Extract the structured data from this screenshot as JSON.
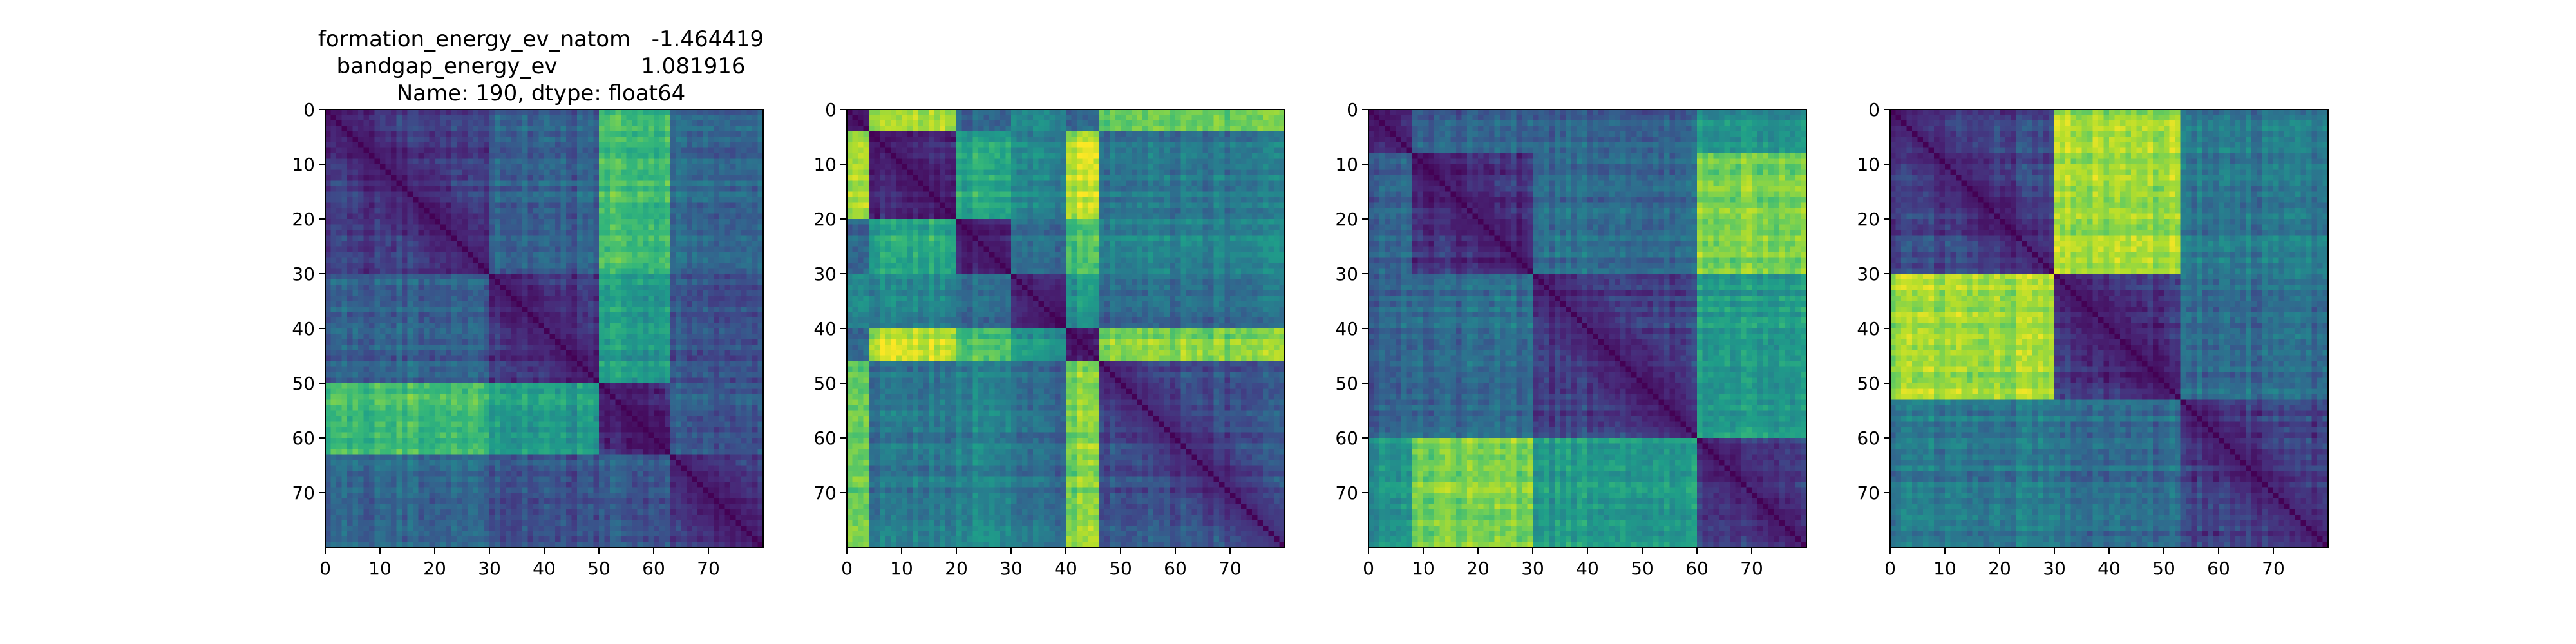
{
  "figure": {
    "background": "#ffffff",
    "colormap": "viridis",
    "colormap_stops": [
      "#440154",
      "#482878",
      "#3e4989",
      "#31688e",
      "#26828e",
      "#1f9e89",
      "#35b779",
      "#6ece58",
      "#b5de2b",
      "#fde725"
    ],
    "title_lines": [
      "formation_energy_ev_natom   -1.464419",
      "bandgap_energy_ev            1.081916",
      "Name: 190, dtype: float64"
    ]
  },
  "chart_data": [
    {
      "type": "heatmap",
      "title": "",
      "size": 80,
      "xlim": [
        0,
        80
      ],
      "ylim": [
        80,
        0
      ],
      "x_ticks": [
        0,
        10,
        20,
        30,
        40,
        50,
        60,
        70
      ],
      "y_ticks": [
        0,
        10,
        20,
        30,
        40,
        50,
        60,
        70
      ],
      "structure": "block pairwise-distance matrix (diagonal = 0); values approximate, normalized 0-1",
      "blocks": [
        [
          0,
          30
        ],
        [
          30,
          50
        ],
        [
          50,
          63
        ],
        [
          63,
          80
        ]
      ],
      "block_values": [
        [
          0.2,
          0.3,
          0.7,
          0.35
        ],
        [
          0.3,
          0.15,
          0.55,
          0.25
        ],
        [
          0.7,
          0.55,
          0.15,
          0.3
        ],
        [
          0.35,
          0.25,
          0.3,
          0.2
        ]
      ]
    },
    {
      "type": "heatmap",
      "title": "",
      "size": 80,
      "xlim": [
        0,
        80
      ],
      "ylim": [
        80,
        0
      ],
      "x_ticks": [
        0,
        10,
        20,
        30,
        40,
        50,
        60,
        70
      ],
      "y_ticks": [
        0,
        10,
        20,
        30,
        40,
        50,
        60,
        70
      ],
      "structure": "block pairwise-distance matrix (diagonal = 0); values approximate, normalized 0-1",
      "blocks": [
        [
          0,
          4
        ],
        [
          4,
          20
        ],
        [
          20,
          30
        ],
        [
          30,
          40
        ],
        [
          40,
          46
        ],
        [
          46,
          80
        ]
      ],
      "block_values": [
        [
          0.1,
          0.85,
          0.3,
          0.45,
          0.3,
          0.75
        ],
        [
          0.85,
          0.15,
          0.6,
          0.45,
          0.9,
          0.4
        ],
        [
          0.3,
          0.6,
          0.15,
          0.35,
          0.7,
          0.45
        ],
        [
          0.45,
          0.45,
          0.35,
          0.15,
          0.5,
          0.35
        ],
        [
          0.3,
          0.9,
          0.7,
          0.5,
          0.1,
          0.8
        ],
        [
          0.75,
          0.4,
          0.45,
          0.35,
          0.8,
          0.25
        ]
      ]
    },
    {
      "type": "heatmap",
      "title": "",
      "size": 80,
      "xlim": [
        0,
        80
      ],
      "ylim": [
        80,
        0
      ],
      "x_ticks": [
        0,
        10,
        20,
        30,
        40,
        50,
        60,
        70
      ],
      "y_ticks": [
        0,
        10,
        20,
        30,
        40,
        50,
        60,
        70
      ],
      "structure": "block pairwise-distance matrix (diagonal = 0); values approximate, normalized 0-1",
      "blocks": [
        [
          0,
          8
        ],
        [
          8,
          30
        ],
        [
          30,
          60
        ],
        [
          60,
          80
        ]
      ],
      "block_values": [
        [
          0.15,
          0.3,
          0.3,
          0.5
        ],
        [
          0.3,
          0.15,
          0.35,
          0.8
        ],
        [
          0.3,
          0.35,
          0.2,
          0.55
        ],
        [
          0.5,
          0.8,
          0.55,
          0.2
        ]
      ]
    },
    {
      "type": "heatmap",
      "title": "",
      "size": 80,
      "xlim": [
        0,
        80
      ],
      "ylim": [
        80,
        0
      ],
      "x_ticks": [
        0,
        10,
        20,
        30,
        40,
        50,
        60,
        70
      ],
      "y_ticks": [
        0,
        10,
        20,
        30,
        40,
        50,
        60,
        70
      ],
      "structure": "block pairwise-distance matrix (diagonal = 0); values approximate, normalized 0-1",
      "blocks": [
        [
          0,
          30
        ],
        [
          30,
          53
        ],
        [
          53,
          80
        ]
      ],
      "block_values": [
        [
          0.2,
          0.85,
          0.4
        ],
        [
          0.85,
          0.15,
          0.35
        ],
        [
          0.4,
          0.35,
          0.2
        ]
      ]
    }
  ]
}
